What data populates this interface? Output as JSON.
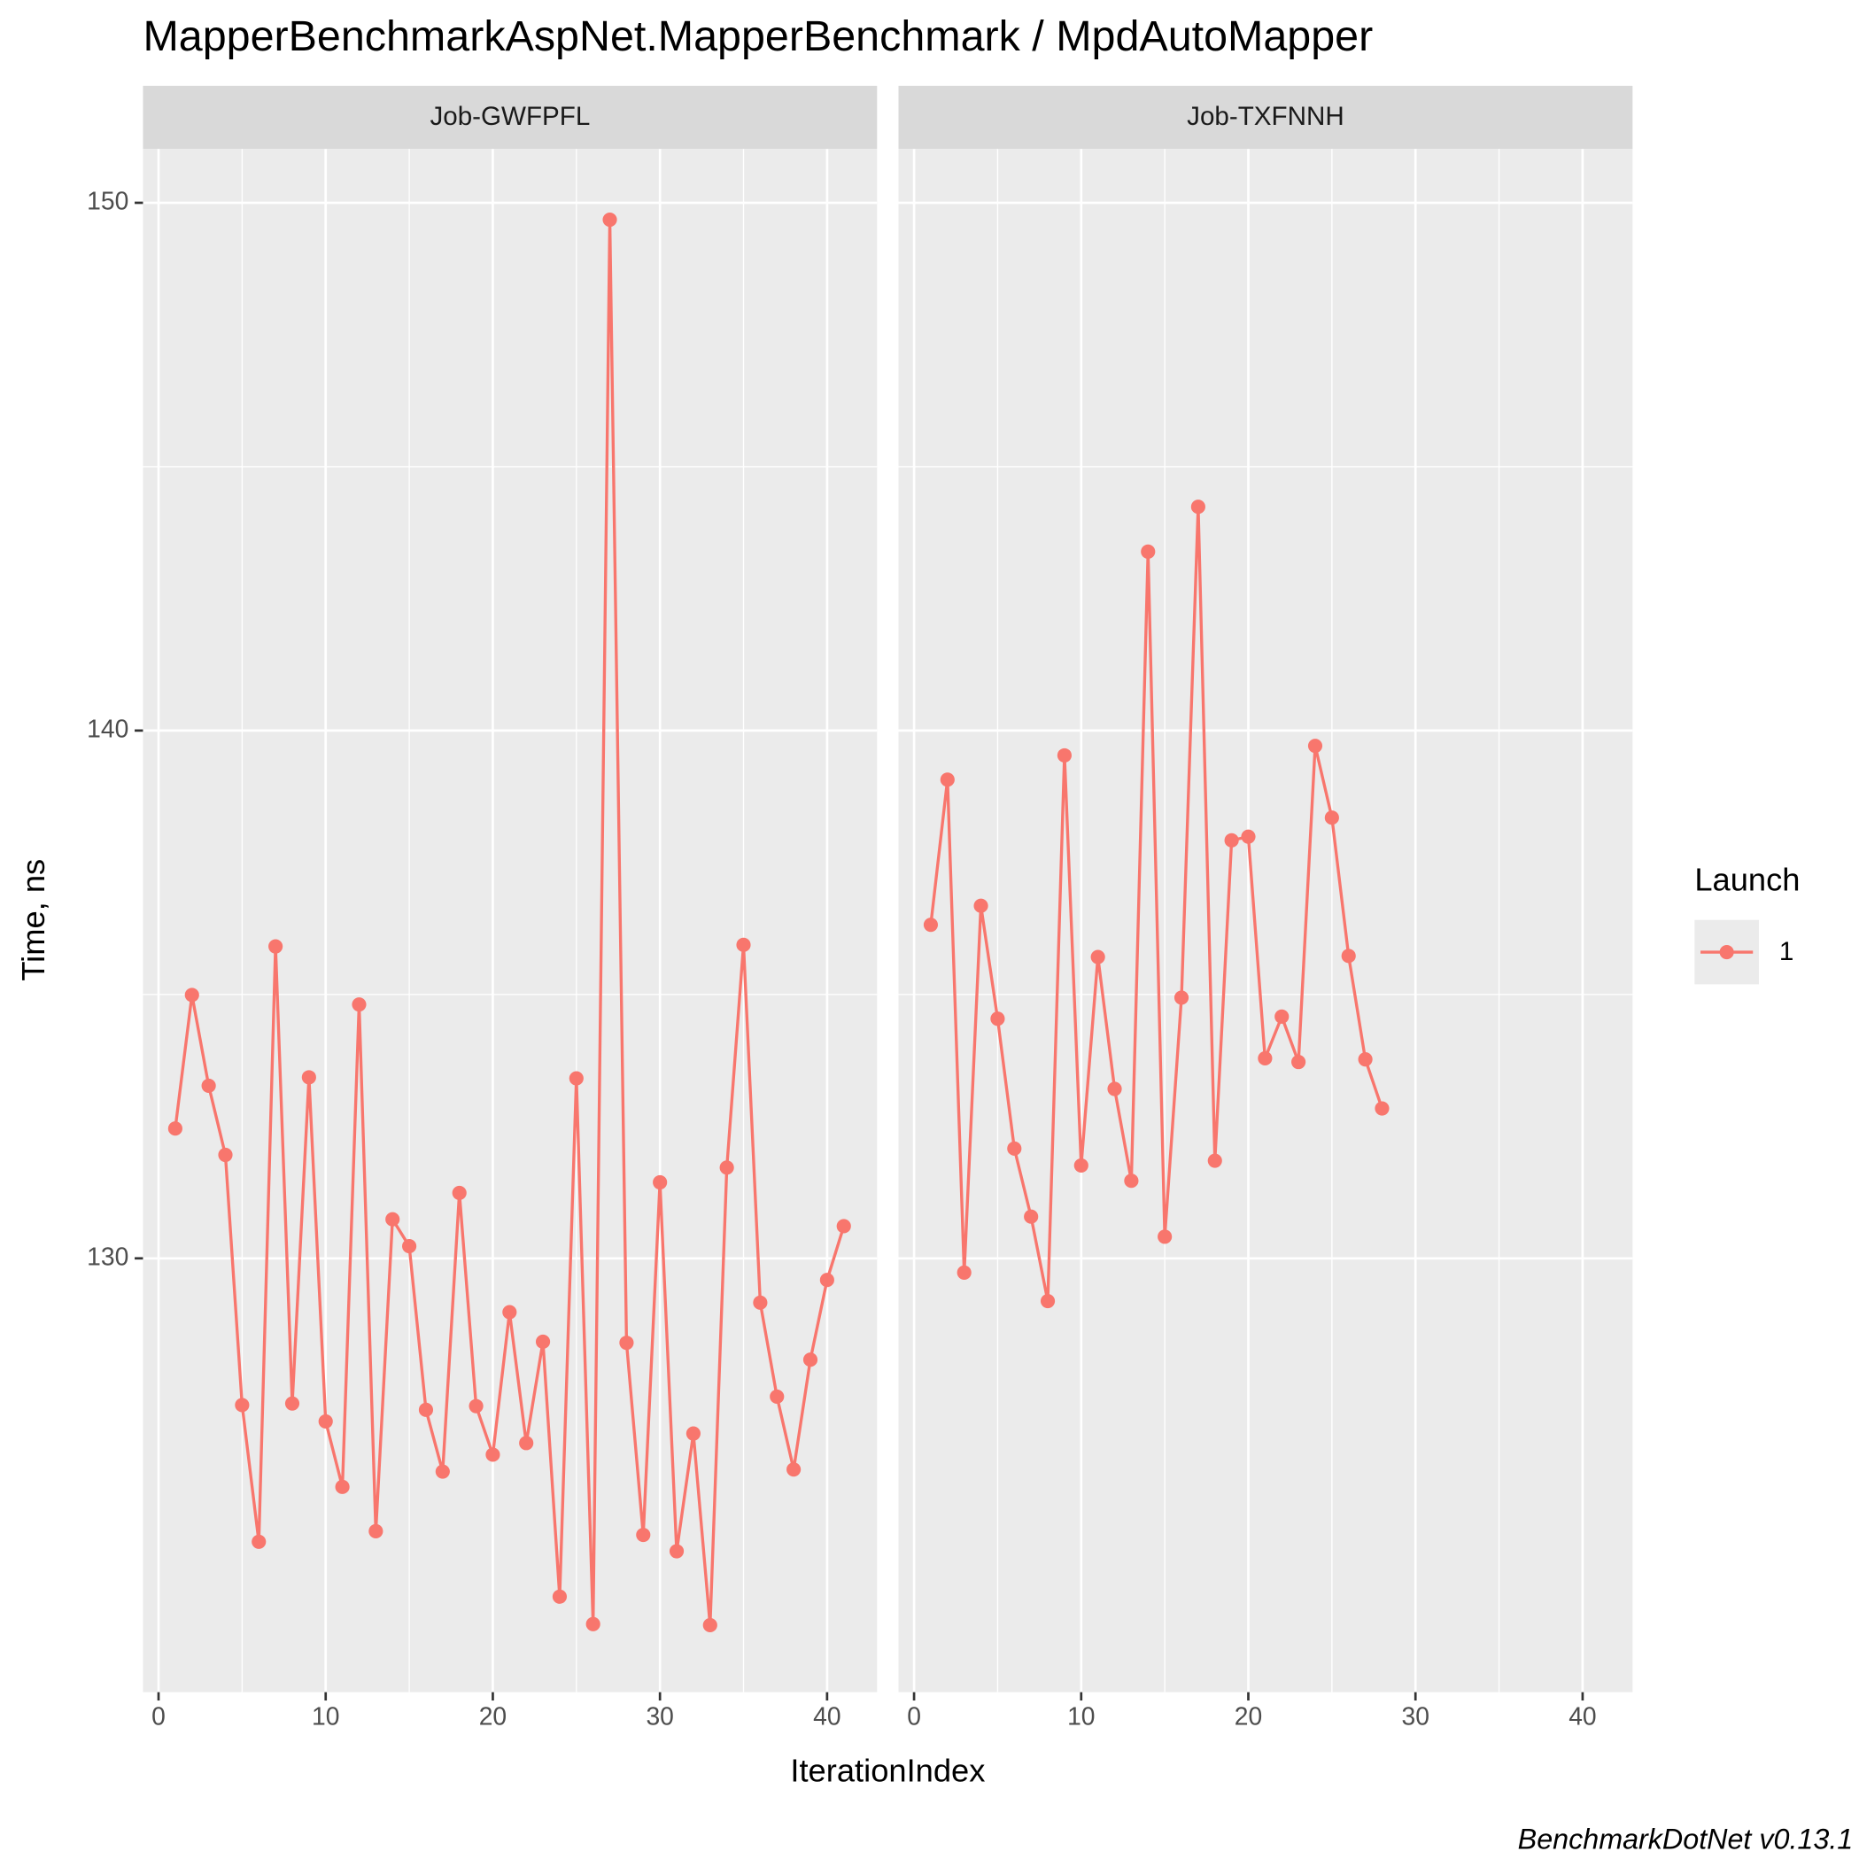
{
  "chart_data": {
    "type": "line",
    "title": "MapperBenchmarkAspNet.MapperBenchmark / MpdAutoMapper",
    "xlabel": "IterationIndex",
    "ylabel": "Time, ns",
    "caption": "BenchmarkDotNet v0.13.1",
    "legend_title": "Launch",
    "xlim": [
      -0.93,
      42.99
    ],
    "xticks": [
      0,
      10,
      20,
      30,
      40
    ],
    "ylim": [
      121.78,
      151.02
    ],
    "yticks": [
      130,
      140,
      150
    ],
    "grid": true,
    "facets": [
      {
        "label": "Job-GWFPFL",
        "x": [
          1,
          2,
          3,
          4,
          5,
          6,
          7,
          8,
          9,
          10,
          11,
          12,
          13,
          14,
          15,
          16,
          17,
          18,
          19,
          20,
          21,
          22,
          23,
          24,
          25,
          26,
          27,
          28,
          29,
          30,
          31,
          32,
          33,
          34,
          35,
          36,
          37,
          38,
          39,
          40,
          41
        ],
        "series": [
          {
            "name": "1",
            "color": "#f8766d",
            "values": [
              132.46,
              134.99,
              133.27,
              131.96,
              127.22,
              124.63,
              135.91,
              127.25,
              133.43,
              126.91,
              125.67,
              134.81,
              124.83,
              130.74,
              130.23,
              127.13,
              125.96,
              131.24,
              127.2,
              126.28,
              128.98,
              126.5,
              128.42,
              123.59,
              133.41,
              123.07,
              149.68,
              128.4,
              124.76,
              131.44,
              124.45,
              126.68,
              123.05,
              131.72,
              135.94,
              129.16,
              127.38,
              126.0,
              128.08,
              129.59,
              130.61
            ]
          }
        ]
      },
      {
        "label": "Job-TXFNNH",
        "x": [
          1,
          2,
          3,
          4,
          5,
          6,
          7,
          8,
          9,
          10,
          11,
          12,
          13,
          14,
          15,
          16,
          17,
          18,
          19,
          20,
          21,
          22,
          23,
          24,
          25,
          26,
          27,
          28
        ],
        "series": [
          {
            "name": "1",
            "color": "#f8766d",
            "values": [
              136.32,
              139.07,
              129.73,
              136.68,
              134.54,
              132.08,
              130.79,
              129.19,
              139.53,
              131.76,
              135.71,
              133.21,
              131.47,
              143.39,
              130.41,
              134.94,
              144.24,
              131.85,
              137.92,
              137.99,
              133.79,
              134.58,
              133.72,
              139.71,
              138.35,
              135.73,
              133.77,
              132.84
            ]
          }
        ]
      }
    ]
  }
}
